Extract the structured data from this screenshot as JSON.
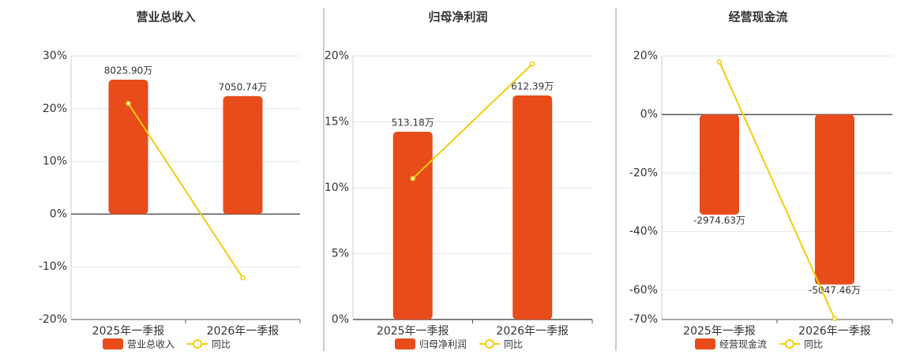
{
  "chart_data": [
    {
      "type": "bar",
      "title": "营业总收入",
      "categories": [
        "2025年一季报",
        "2026年一季报"
      ],
      "series": [
        {
          "name": "营业总收入",
          "color": "#e84c1a",
          "axis": "y2",
          "values": [
            8025.9,
            7050.74
          ],
          "value_labels": [
            "8025.90万",
            "7050.74万"
          ]
        },
        {
          "name": "同比",
          "type": "line",
          "color": "#f2cc0c",
          "values": [
            21.0,
            -12.1
          ]
        }
      ],
      "ylim": [
        -20,
        30
      ],
      "yticks": [
        {
          "value": -20,
          "label": "-20%"
        },
        {
          "value": -10,
          "label": "-10%"
        },
        {
          "value": 0,
          "label": "0%"
        },
        {
          "value": 10,
          "label": "10%"
        },
        {
          "value": 20,
          "label": "20%"
        },
        {
          "value": 30,
          "label": "30%"
        }
      ],
      "y2lim": [
        -6295,
        9442
      ],
      "grid": true
    },
    {
      "type": "bar",
      "title": "归母净利润",
      "categories": [
        "2025年一季报",
        "2026年一季报"
      ],
      "series": [
        {
          "name": "归母净利润",
          "color": "#e84c1a",
          "axis": "y2",
          "values": [
            513.18,
            612.39
          ],
          "value_labels": [
            "513.18万",
            "612.39万"
          ]
        },
        {
          "name": "同比",
          "type": "line",
          "color": "#f2cc0c",
          "values": [
            10.7,
            19.4
          ]
        }
      ],
      "ylim": [
        0,
        20
      ],
      "yticks": [
        {
          "value": 0,
          "label": "0%"
        },
        {
          "value": 5,
          "label": "5%"
        },
        {
          "value": 10,
          "label": "10%"
        },
        {
          "value": 15,
          "label": "15%"
        },
        {
          "value": 20,
          "label": "20%"
        }
      ],
      "y2lim": [
        0,
        720.2
      ],
      "grid": true
    },
    {
      "type": "bar",
      "title": "经营现金流",
      "categories": [
        "2025年一季报",
        "2026年一季报"
      ],
      "series": [
        {
          "name": "经营现金流",
          "color": "#e84c1a",
          "axis": "y2",
          "values": [
            -2974.63,
            -5047.46
          ],
          "value_labels": [
            "-2974.63万",
            "-5047.46万"
          ]
        },
        {
          "name": "同比",
          "type": "line",
          "color": "#f2cc0c",
          "values": [
            18.0,
            -69.7
          ]
        }
      ],
      "ylim": [
        -70,
        20
      ],
      "yticks": [
        {
          "value": -70,
          "label": "-70%"
        },
        {
          "value": -60,
          "label": "-60%"
        },
        {
          "value": -40,
          "label": "-40%"
        },
        {
          "value": -20,
          "label": "-20%"
        },
        {
          "value": 0,
          "label": "0%"
        },
        {
          "value": 20,
          "label": "20%"
        }
      ],
      "y2lim": [
        -6089,
        1740
      ],
      "grid": true
    }
  ]
}
